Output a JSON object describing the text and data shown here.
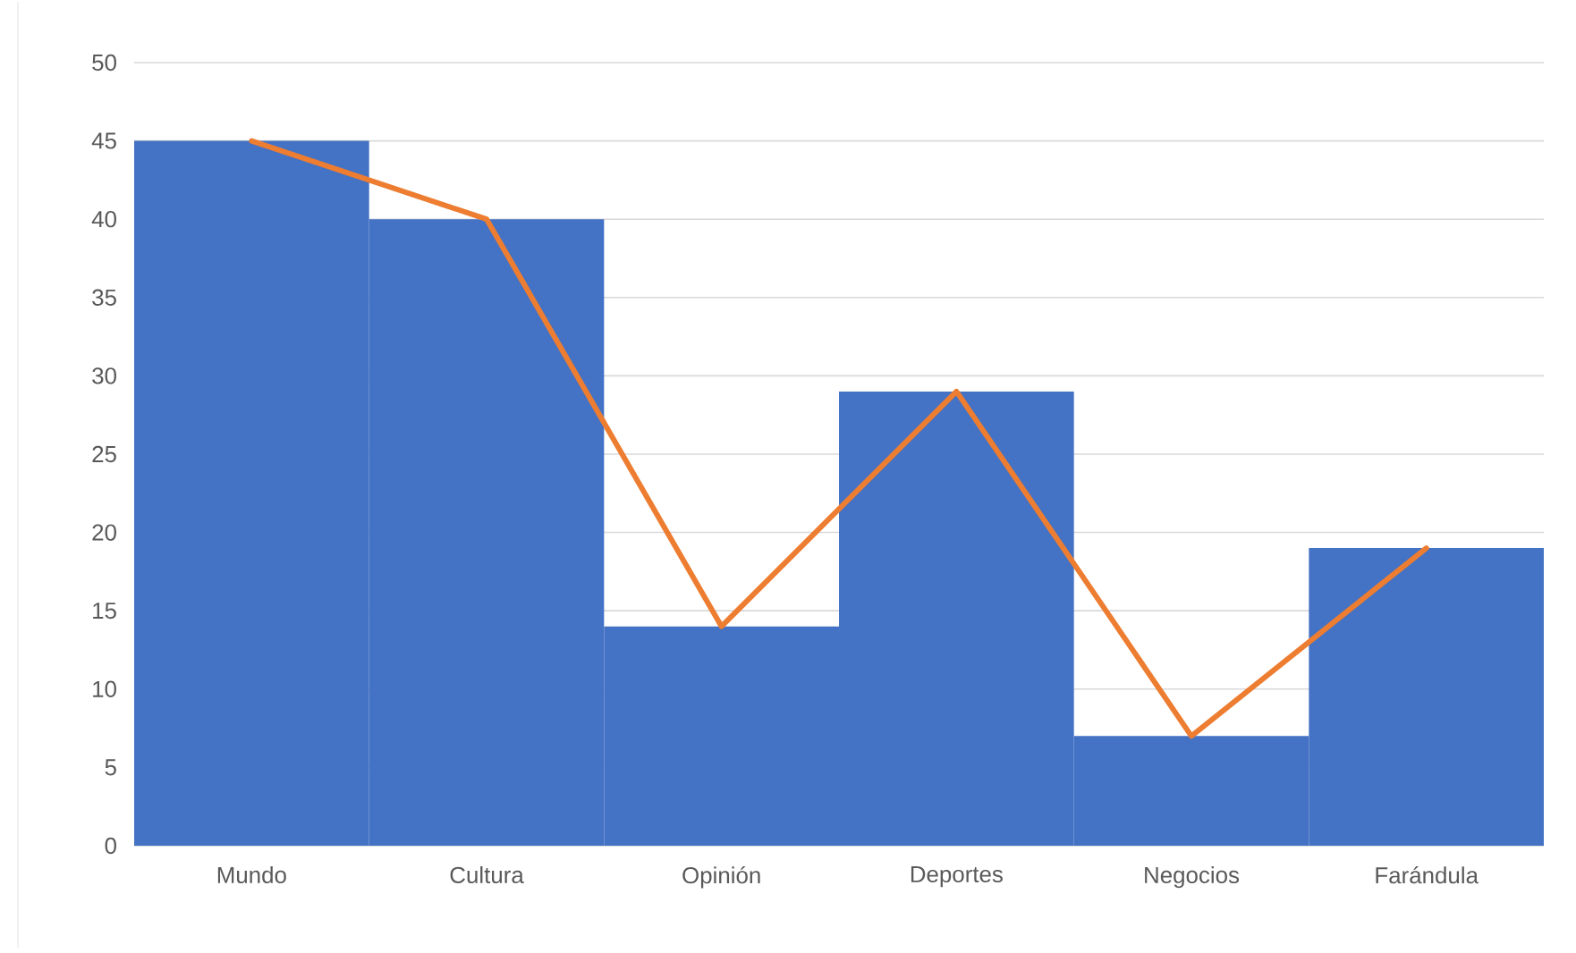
{
  "chart_data": {
    "type": "bar",
    "categories": [
      "Mundo",
      "Cultura",
      "Opinión",
      "Deportes",
      "Negocios",
      "Farándula"
    ],
    "series": [
      {
        "color": "#4472c4",
        "values": [
          45,
          40,
          14,
          29,
          7,
          19
        ]
      },
      {
        "type": "line",
        "color": "#ed7d31",
        "values": [
          45,
          40,
          14,
          29,
          7,
          19
        ]
      }
    ],
    "ylim": [
      0,
      50
    ],
    "yticks": [
      0,
      5,
      10,
      15,
      20,
      25,
      30,
      35,
      40,
      45,
      50
    ],
    "grid": "y"
  }
}
